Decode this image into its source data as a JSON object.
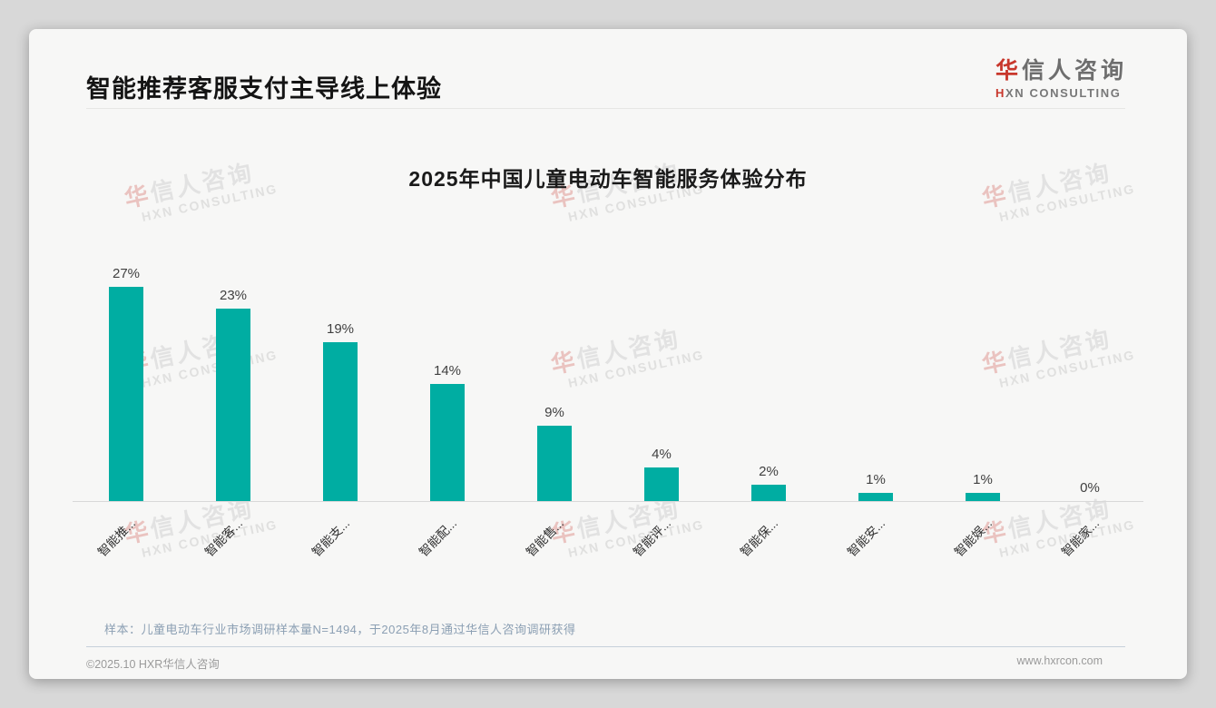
{
  "page": {
    "slide_title": "智能推荐客服支付主导线上体验",
    "logo": {
      "cn_first": "华",
      "cn_rest": "信人咨询",
      "en_first": "H",
      "en_rest": "XN CONSULTING"
    },
    "watermark": {
      "cn_first": "华",
      "cn_rest": "信人咨询",
      "en": "HXN CONSULTING"
    },
    "footnote": "样本：儿童电动车行业市场调研样本量N=1494，于2025年8月通过华信人咨询调研获得",
    "footer_left": "©2025.10 HXR华信人咨询",
    "footer_right": "www.hxrcon.com"
  },
  "chart_data": {
    "type": "bar",
    "title": "2025年中国儿童电动车智能服务体验分布",
    "categories": [
      "智能推...",
      "智能客...",
      "智能支...",
      "智能配...",
      "智能售...",
      "智能评...",
      "智能保...",
      "智能安...",
      "智能娱...",
      "智能家..."
    ],
    "values": [
      27,
      23,
      19,
      14,
      9,
      4,
      2,
      1,
      1,
      0
    ],
    "value_labels": [
      "27%",
      "23%",
      "19%",
      "14%",
      "9%",
      "4%",
      "2%",
      "1%",
      "1%",
      "0%"
    ],
    "xlabel": "",
    "ylabel": "",
    "ylim": [
      0,
      28
    ],
    "grid": false,
    "legend_position": "none",
    "bar_color": "#00ada2",
    "axis_line_color": "#d8d8d8",
    "label_rotation_deg": -45
  },
  "colors": {
    "accent_red": "#c8372c",
    "bar_teal": "#00ada2",
    "card_bg": "#f7f7f6",
    "page_bg": "#d8d8d8",
    "footnote_blue_gray": "#8b9fb3"
  }
}
